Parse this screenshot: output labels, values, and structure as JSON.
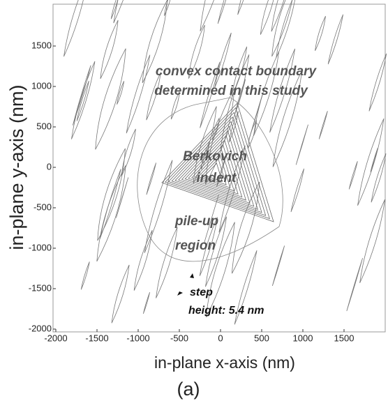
{
  "chart_data": {
    "type": "contour",
    "x_label": "in-plane x-axis (nm)",
    "y_label": "in-plane y-axis (nm)",
    "caption": "(a)",
    "xlim": [
      -2000,
      2000
    ],
    "ylim": [
      -2000,
      2000
    ],
    "xticks": [
      -2000,
      -1500,
      -1000,
      -500,
      0,
      500,
      1000,
      1500
    ],
    "yticks": [
      -2000,
      -1500,
      -1000,
      -500,
      0,
      500,
      1000,
      1500
    ],
    "annotations": [
      "convex contact boundary",
      "determined in this study",
      "Berkovich",
      "indent",
      "pile-up",
      "region",
      "step",
      "height: 5.4 nm"
    ],
    "color": "#777777"
  }
}
